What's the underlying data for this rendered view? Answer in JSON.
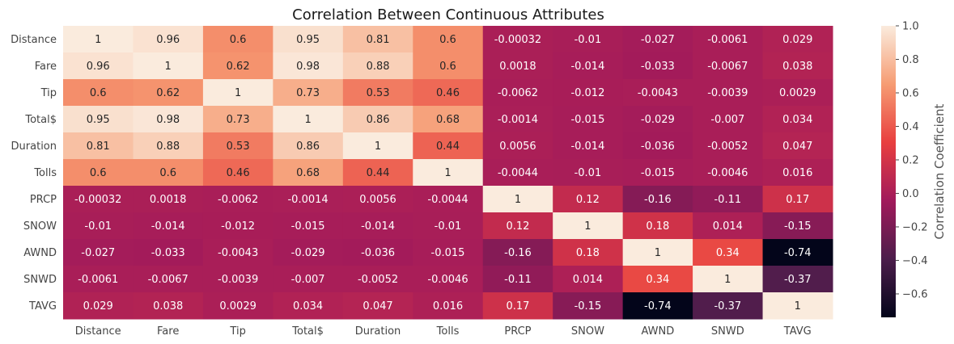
{
  "chart_data": {
    "type": "heatmap",
    "title": "Correlation Between Continuous Attributes",
    "x_labels": [
      "Distance",
      "Fare",
      "Tip",
      "Total$",
      "Duration",
      "Tolls",
      "PRCP",
      "SNOW",
      "AWND",
      "SNWD",
      "TAVG"
    ],
    "y_labels": [
      "Distance",
      "Fare",
      "Tip",
      "Total$",
      "Duration",
      "Tolls",
      "PRCP",
      "SNOW",
      "AWND",
      "SNWD",
      "TAVG"
    ],
    "values": [
      [
        1,
        0.96,
        0.6,
        0.95,
        0.81,
        0.6,
        -0.00032,
        -0.01,
        -0.027,
        -0.0061,
        0.029
      ],
      [
        0.96,
        1,
        0.62,
        0.98,
        0.88,
        0.6,
        0.0018,
        -0.014,
        -0.033,
        -0.0067,
        0.038
      ],
      [
        0.6,
        0.62,
        1,
        0.73,
        0.53,
        0.46,
        -0.0062,
        -0.012,
        -0.0043,
        -0.0039,
        0.0029
      ],
      [
        0.95,
        0.98,
        0.73,
        1,
        0.86,
        0.68,
        -0.0014,
        -0.015,
        -0.029,
        -0.007,
        0.034
      ],
      [
        0.81,
        0.88,
        0.53,
        0.86,
        1,
        0.44,
        0.0056,
        -0.014,
        -0.036,
        -0.0052,
        0.047
      ],
      [
        0.6,
        0.6,
        0.46,
        0.68,
        0.44,
        1,
        -0.0044,
        -0.01,
        -0.015,
        -0.0046,
        0.016
      ],
      [
        -0.00032,
        0.0018,
        -0.0062,
        -0.0014,
        0.0056,
        -0.0044,
        1,
        0.12,
        -0.16,
        -0.11,
        0.17
      ],
      [
        -0.01,
        -0.014,
        -0.012,
        -0.015,
        -0.014,
        -0.01,
        0.12,
        1,
        0.18,
        0.014,
        -0.15
      ],
      [
        -0.027,
        -0.033,
        -0.0043,
        -0.029,
        -0.036,
        -0.015,
        -0.16,
        0.18,
        1,
        0.34,
        -0.74
      ],
      [
        -0.0061,
        -0.0067,
        -0.0039,
        -0.007,
        -0.0052,
        -0.0046,
        -0.11,
        0.014,
        0.34,
        1,
        -0.37
      ],
      [
        0.029,
        0.038,
        0.0029,
        0.034,
        0.047,
        0.016,
        0.17,
        -0.15,
        -0.74,
        -0.37,
        1
      ]
    ],
    "value_labels": [
      [
        "1",
        "0.96",
        "0.6",
        "0.95",
        "0.81",
        "0.6",
        "-0.00032",
        "-0.01",
        "-0.027",
        "-0.0061",
        "0.029"
      ],
      [
        "0.96",
        "1",
        "0.62",
        "0.98",
        "0.88",
        "0.6",
        "0.0018",
        "-0.014",
        "-0.033",
        "-0.0067",
        "0.038"
      ],
      [
        "0.6",
        "0.62",
        "1",
        "0.73",
        "0.53",
        "0.46",
        "-0.0062",
        "-0.012",
        "-0.0043",
        "-0.0039",
        "0.0029"
      ],
      [
        "0.95",
        "0.98",
        "0.73",
        "1",
        "0.86",
        "0.68",
        "-0.0014",
        "-0.015",
        "-0.029",
        "-0.007",
        "0.034"
      ],
      [
        "0.81",
        "0.88",
        "0.53",
        "0.86",
        "1",
        "0.44",
        "0.0056",
        "-0.014",
        "-0.036",
        "-0.0052",
        "0.047"
      ],
      [
        "0.6",
        "0.6",
        "0.46",
        "0.68",
        "0.44",
        "1",
        "-0.0044",
        "-0.01",
        "-0.015",
        "-0.0046",
        "0.016"
      ],
      [
        "-0.00032",
        "0.0018",
        "-0.0062",
        "-0.0014",
        "0.0056",
        "-0.0044",
        "1",
        "0.12",
        "-0.16",
        "-0.11",
        "0.17"
      ],
      [
        "-0.01",
        "-0.014",
        "-0.012",
        "-0.015",
        "-0.014",
        "-0.01",
        "0.12",
        "1",
        "0.18",
        "0.014",
        "-0.15"
      ],
      [
        "-0.027",
        "-0.033",
        "-0.0043",
        "-0.029",
        "-0.036",
        "-0.015",
        "-0.16",
        "0.18",
        "1",
        "0.34",
        "-0.74"
      ],
      [
        "-0.0061",
        "-0.0067",
        "-0.0039",
        "-0.007",
        "-0.0052",
        "-0.0046",
        "-0.11",
        "0.014",
        "0.34",
        "1",
        "-0.37"
      ],
      [
        "0.029",
        "0.038",
        "0.0029",
        "0.034",
        "0.047",
        "0.016",
        "0.17",
        "-0.15",
        "-0.74",
        "-0.37",
        "1"
      ]
    ],
    "colorbar": {
      "label": "Correlation Coefficient",
      "range": [
        -0.74,
        1.0
      ],
      "ticks": [
        1.0,
        0.8,
        0.6,
        0.4,
        0.2,
        0.0,
        -0.2,
        -0.4,
        -0.6
      ],
      "tick_labels": [
        "1.0",
        "0.8",
        "0.6",
        "0.4",
        "0.2",
        "0.0",
        "−0.2",
        "−0.4",
        "−0.6"
      ],
      "colormap": "rocket",
      "stops": [
        "#03051a",
        "#4c1d4b",
        "#a11a5b",
        "#e83f3f",
        "#f69c73",
        "#faebdd"
      ]
    }
  }
}
